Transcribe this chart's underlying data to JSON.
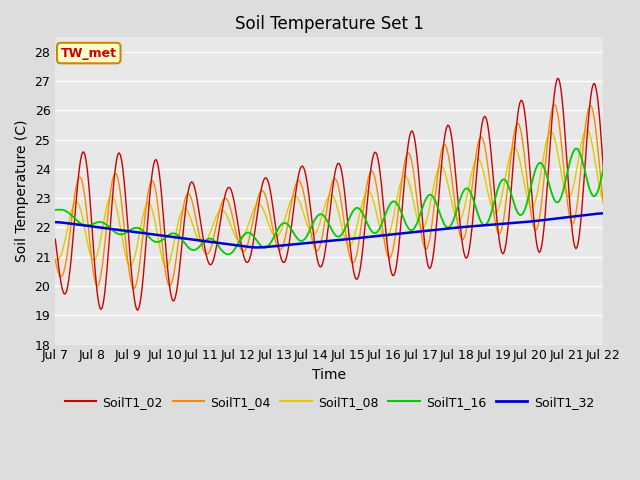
{
  "title": "Soil Temperature Set 1",
  "xlabel": "Time",
  "ylabel": "Soil Temperature (C)",
  "ylim": [
    18.0,
    28.5
  ],
  "yticks": [
    18.0,
    19.0,
    20.0,
    21.0,
    22.0,
    23.0,
    24.0,
    25.0,
    26.0,
    27.0,
    28.0
  ],
  "xtick_labels": [
    "Jul 7",
    "Jul 8",
    "Jul 9",
    "Jul 10",
    "Jul 11",
    "Jul 12",
    "Jul 13",
    "Jul 14",
    "Jul 15",
    "Jul 16",
    "Jul 17",
    "Jul 18",
    "Jul 19",
    "Jul 20",
    "Jul 21",
    "Jul 22"
  ],
  "series_colors": {
    "SoilT1_02": "#cc0000",
    "SoilT1_04": "#ff8800",
    "SoilT1_08": "#ddcc00",
    "SoilT1_16": "#00cc00",
    "SoilT1_32": "#0000cc"
  },
  "annotation_text": "TW_met",
  "annotation_color": "#cc0000",
  "annotation_bg": "#ffffcc",
  "annotation_border": "#cc8800",
  "bg_color": "#dddddd",
  "plot_bg_color": "#e8e8e8",
  "grid_color": "#ffffff",
  "title_fontsize": 12,
  "axis_fontsize": 10,
  "tick_fontsize": 9,
  "legend_fontsize": 9,
  "num_points": 480
}
